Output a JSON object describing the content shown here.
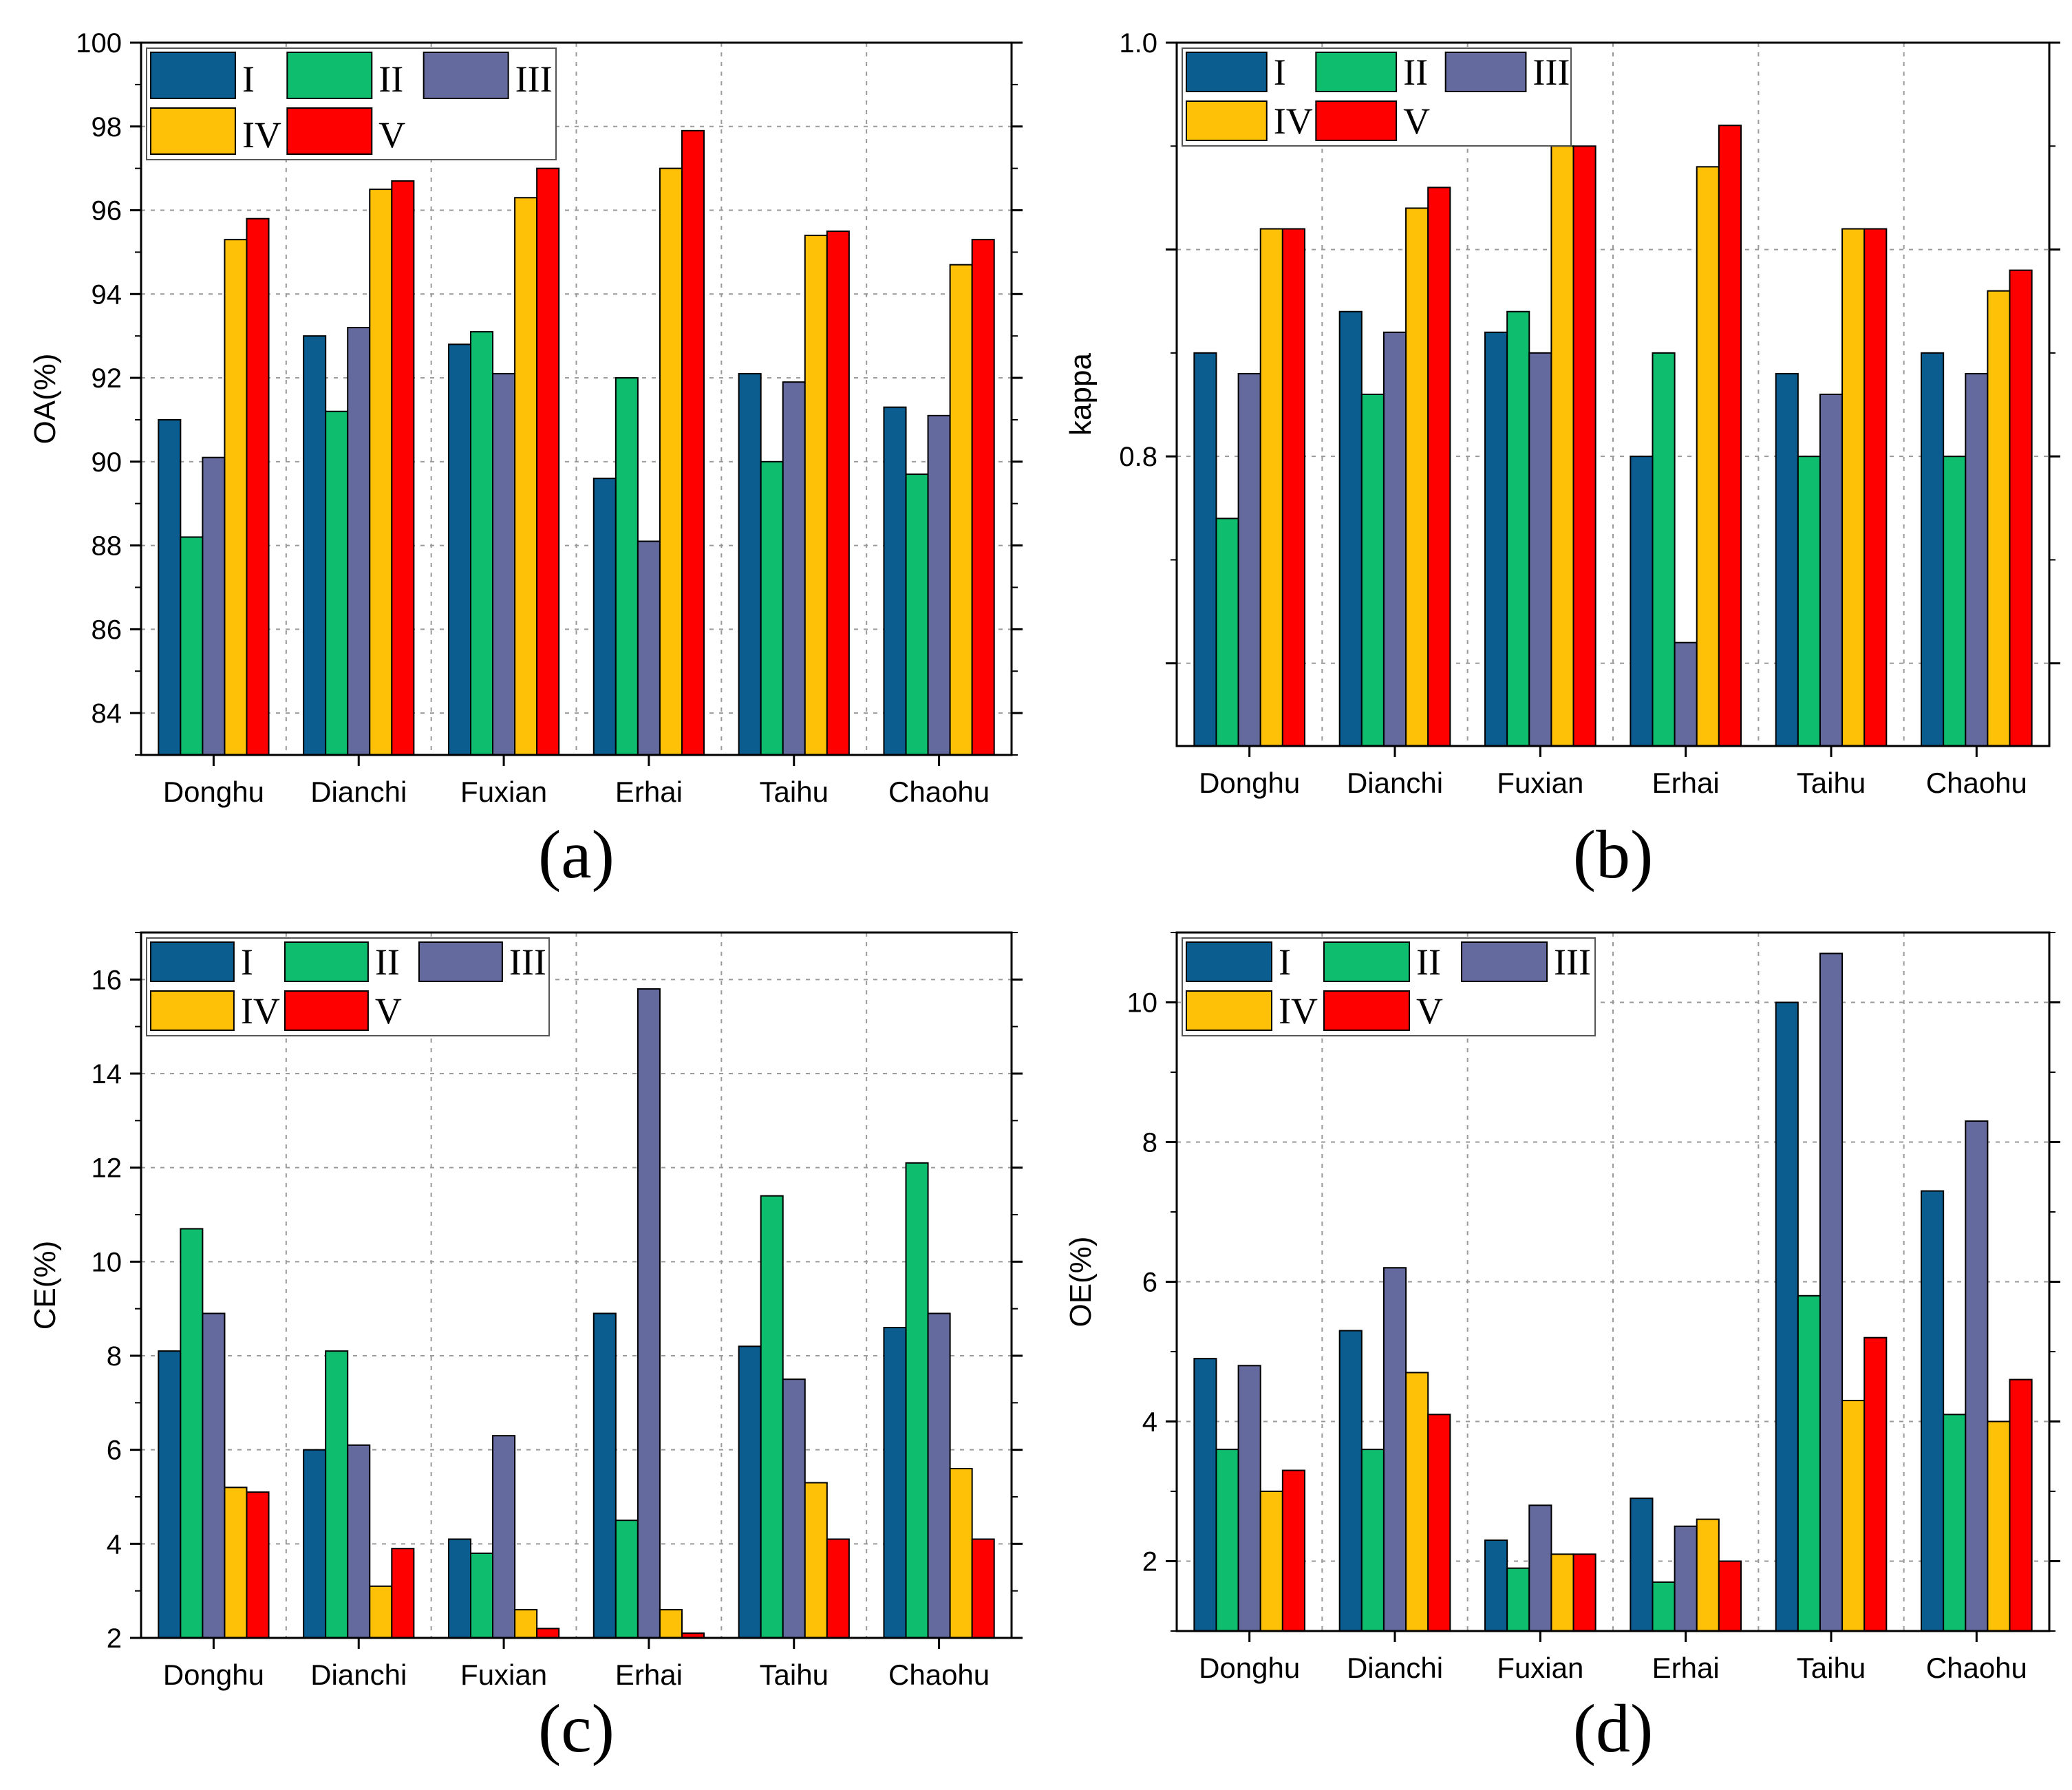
{
  "series_colors": [
    "#0b5c8f",
    "#0fbd6e",
    "#646a9d",
    "#ffc107",
    "#ff0000"
  ],
  "chart_data": [
    {
      "type": "bar",
      "panel_label": "(a)",
      "ylabel": "OA(%)",
      "ylim": [
        83,
        100
      ],
      "yticks": [
        84,
        86,
        88,
        90,
        92,
        94,
        96,
        98,
        100
      ],
      "grid": true,
      "legend_position": "top-left",
      "categories": [
        "Donghu",
        "Dianchi",
        "Fuxian",
        "Erhai",
        "Taihu",
        "Chaohu"
      ],
      "series": [
        {
          "name": "I",
          "values": [
            91.0,
            93.0,
            92.8,
            89.6,
            92.1,
            91.3
          ]
        },
        {
          "name": "II",
          "values": [
            88.2,
            91.2,
            93.1,
            92.0,
            90.0,
            89.7
          ]
        },
        {
          "name": "III",
          "values": [
            90.1,
            93.2,
            92.1,
            88.1,
            91.9,
            91.1
          ]
        },
        {
          "name": "IV",
          "values": [
            95.3,
            96.5,
            96.3,
            97.0,
            95.4,
            94.7
          ]
        },
        {
          "name": "V",
          "values": [
            95.8,
            96.7,
            97.0,
            97.9,
            95.5,
            95.3
          ]
        }
      ]
    },
    {
      "type": "bar",
      "panel_label": "(b)",
      "ylabel": "kappa",
      "ylim": [
        0.66,
        1.0
      ],
      "yticks": [
        0.8,
        1.0
      ],
      "ytick_labels": [
        "0.8",
        "1.0"
      ],
      "grid": true,
      "legend_position": "top-left",
      "categories": [
        "Donghu",
        "Dianchi",
        "Fuxian",
        "Erhai",
        "Taihu",
        "Chaohu"
      ],
      "series": [
        {
          "name": "I",
          "values": [
            0.85,
            0.87,
            0.86,
            0.8,
            0.84,
            0.85
          ]
        },
        {
          "name": "II",
          "values": [
            0.77,
            0.83,
            0.87,
            0.85,
            0.8,
            0.8
          ]
        },
        {
          "name": "III",
          "values": [
            0.84,
            0.86,
            0.85,
            0.71,
            0.83,
            0.84
          ]
        },
        {
          "name": "IV",
          "values": [
            0.91,
            0.92,
            0.95,
            0.94,
            0.91,
            0.88
          ]
        },
        {
          "name": "V",
          "values": [
            0.91,
            0.93,
            0.95,
            0.96,
            0.91,
            0.89
          ]
        }
      ]
    },
    {
      "type": "bar",
      "panel_label": "(c)",
      "ylabel": "CE(%)",
      "ylim": [
        2,
        17
      ],
      "yticks": [
        2,
        4,
        6,
        8,
        10,
        12,
        14,
        16
      ],
      "grid": true,
      "legend_position": "top-left",
      "categories": [
        "Donghu",
        "Dianchi",
        "Fuxian",
        "Erhai",
        "Taihu",
        "Chaohu"
      ],
      "series": [
        {
          "name": "I",
          "values": [
            8.1,
            6.0,
            4.1,
            8.9,
            8.2,
            8.6
          ]
        },
        {
          "name": "II",
          "values": [
            10.7,
            8.1,
            3.8,
            4.5,
            11.4,
            12.1
          ]
        },
        {
          "name": "III",
          "values": [
            8.9,
            6.1,
            6.3,
            15.8,
            7.5,
            8.9
          ]
        },
        {
          "name": "IV",
          "values": [
            5.2,
            3.1,
            2.6,
            2.6,
            5.3,
            5.6
          ]
        },
        {
          "name": "V",
          "values": [
            5.1,
            3.9,
            2.2,
            2.1,
            4.1,
            4.1
          ]
        }
      ]
    },
    {
      "type": "bar",
      "panel_label": "(d)",
      "ylabel": "OE(%)",
      "ylim": [
        1,
        11
      ],
      "yticks": [
        2,
        4,
        6,
        8,
        10
      ],
      "grid": true,
      "legend_position": "top-left",
      "categories": [
        "Donghu",
        "Dianchi",
        "Fuxian",
        "Erhai",
        "Taihu",
        "Chaohu"
      ],
      "series": [
        {
          "name": "I",
          "values": [
            4.9,
            5.3,
            2.3,
            2.9,
            10.0,
            7.3
          ]
        },
        {
          "name": "II",
          "values": [
            3.6,
            3.6,
            1.9,
            1.7,
            5.8,
            4.1
          ]
        },
        {
          "name": "III",
          "values": [
            4.8,
            6.2,
            2.8,
            2.5,
            10.7,
            8.3
          ]
        },
        {
          "name": "IV",
          "values": [
            3.0,
            4.7,
            2.1,
            2.6,
            4.3,
            4.0
          ]
        },
        {
          "name": "V",
          "values": [
            3.3,
            4.1,
            2.1,
            2.0,
            5.2,
            4.6
          ]
        }
      ]
    }
  ]
}
